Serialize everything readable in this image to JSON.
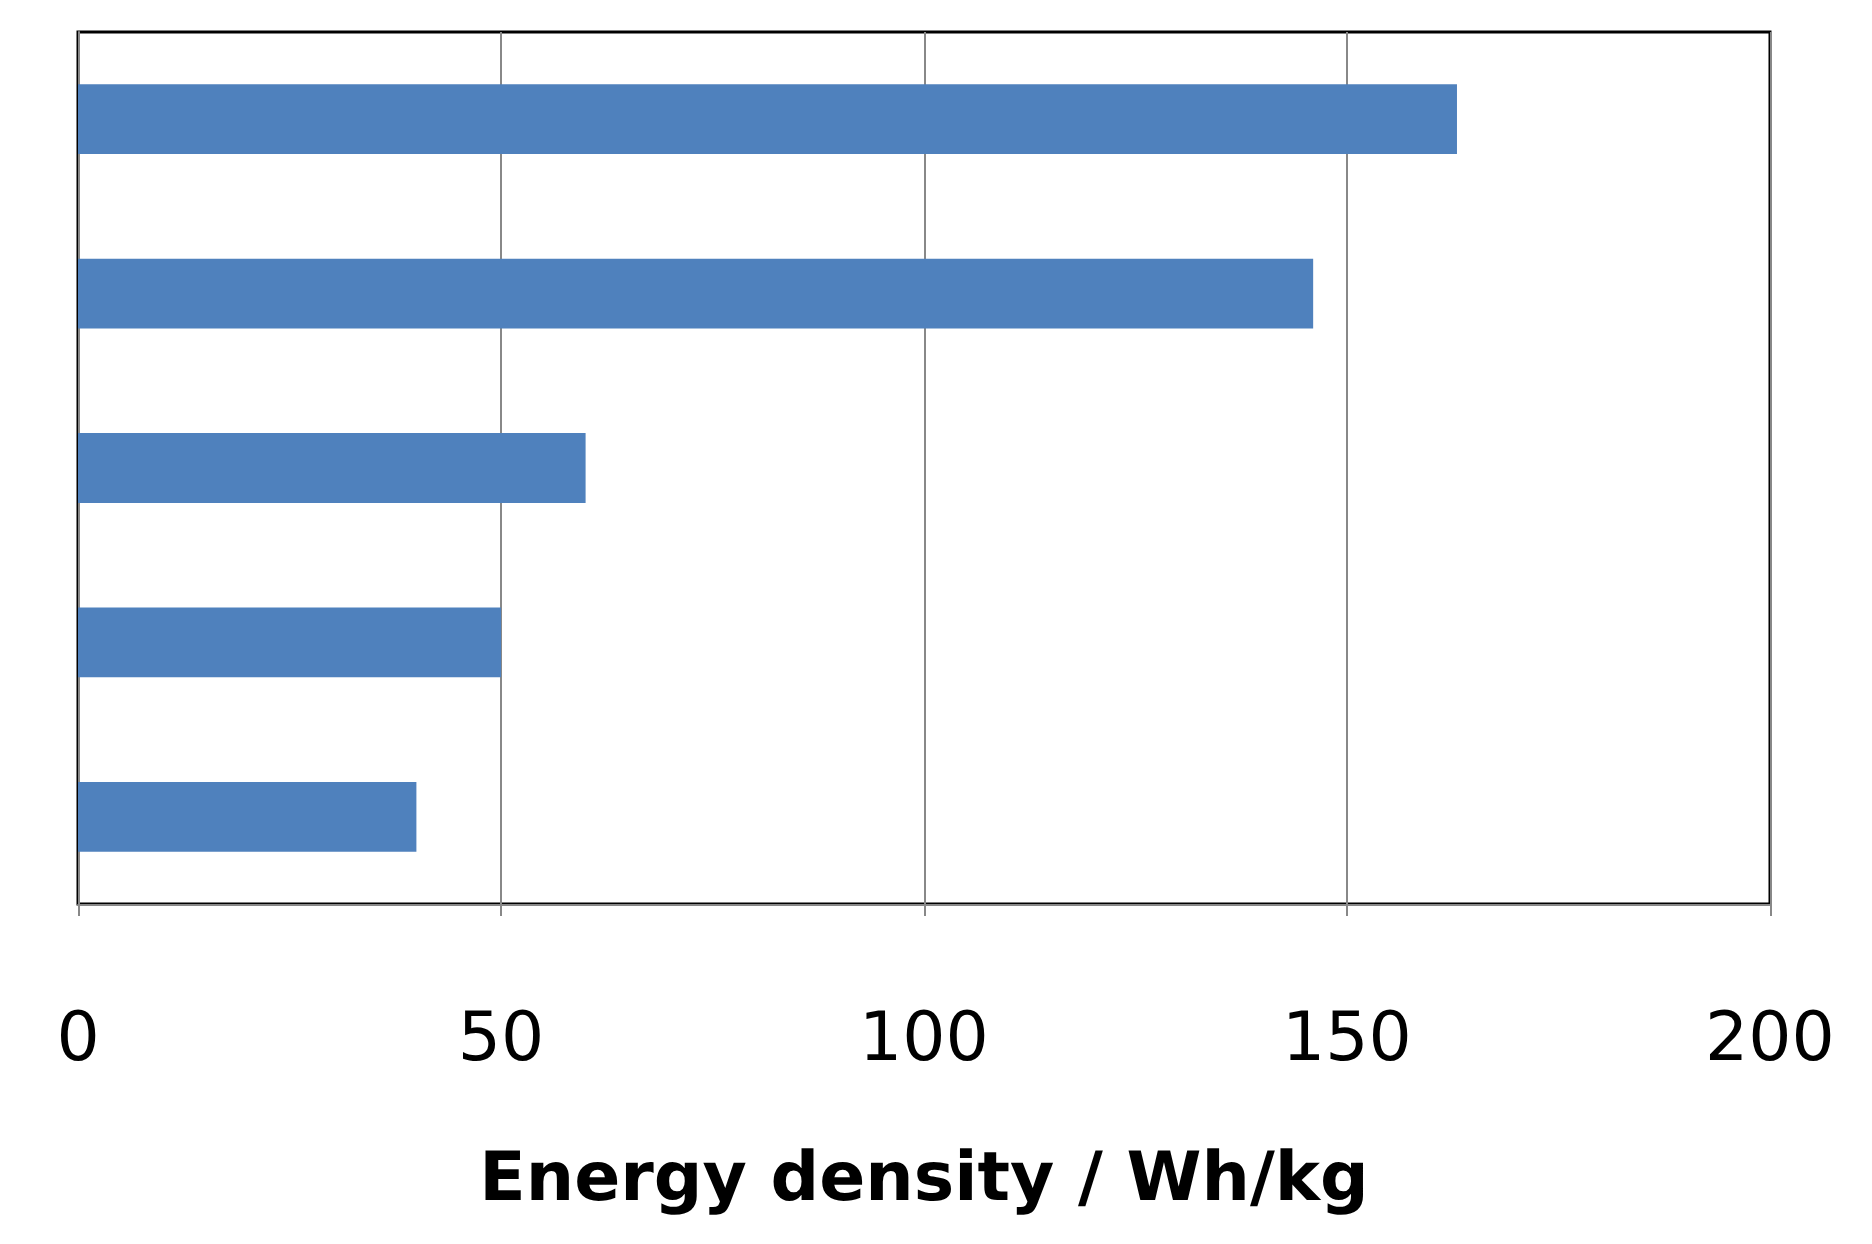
{
  "chart_data": {
    "type": "bar",
    "orientation": "horizontal",
    "xlabel": "Energy density / Wh/kg",
    "categories": [
      null,
      null,
      null,
      null,
      null
    ],
    "values": [
      163,
      146,
      60,
      50,
      40
    ],
    "color": "#4f81bd",
    "xlim": [
      0,
      200
    ],
    "xticks": [
      0,
      50,
      100,
      150,
      200
    ],
    "grid": "x"
  }
}
